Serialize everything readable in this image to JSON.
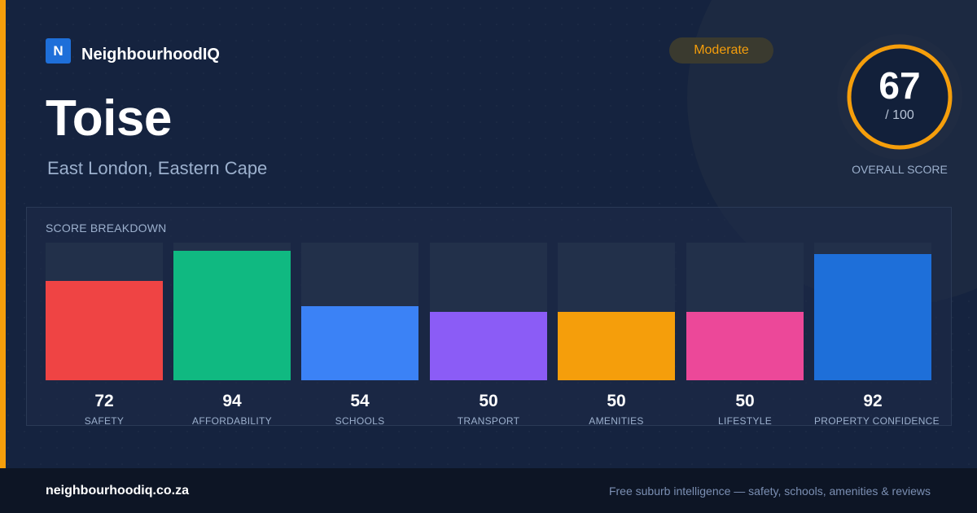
{
  "brand": {
    "mark": "N",
    "name": "NeighbourhoodIQ"
  },
  "suburb": {
    "name": "Toise",
    "location": "East London, Eastern Cape"
  },
  "badge": {
    "label": "Moderate",
    "color": "#f59e0b"
  },
  "overall": {
    "score": "67",
    "max": "/ 100",
    "label": "OVERALL SCORE",
    "fraction": 0.67,
    "ring_color": "#f59e0b"
  },
  "breakdown": {
    "title": "SCORE BREAKDOWN",
    "categories": [
      {
        "label": "SAFETY",
        "value": "72",
        "fill_fraction": 0.72,
        "color": "#ef4444"
      },
      {
        "label": "AFFORDABILITY",
        "value": "94",
        "fill_fraction": 0.94,
        "color": "#10b981"
      },
      {
        "label": "SCHOOLS",
        "value": "54",
        "fill_fraction": 0.54,
        "color": "#3b82f6"
      },
      {
        "label": "TRANSPORT",
        "value": "50",
        "fill_fraction": 0.5,
        "color": "#8b5cf6"
      },
      {
        "label": "AMENITIES",
        "value": "50",
        "fill_fraction": 0.5,
        "color": "#f59e0b"
      },
      {
        "label": "LIFESTYLE",
        "value": "50",
        "fill_fraction": 0.5,
        "color": "#ec4899"
      },
      {
        "label": "PROPERTY CONFIDENCE",
        "value": "92",
        "fill_fraction": 0.92,
        "color": "#1e6fd9"
      }
    ]
  },
  "footer": {
    "url": "neighbourhoodiq.co.za",
    "tagline": "Free suburb intelligence — safety, schools, amenities & reviews"
  }
}
